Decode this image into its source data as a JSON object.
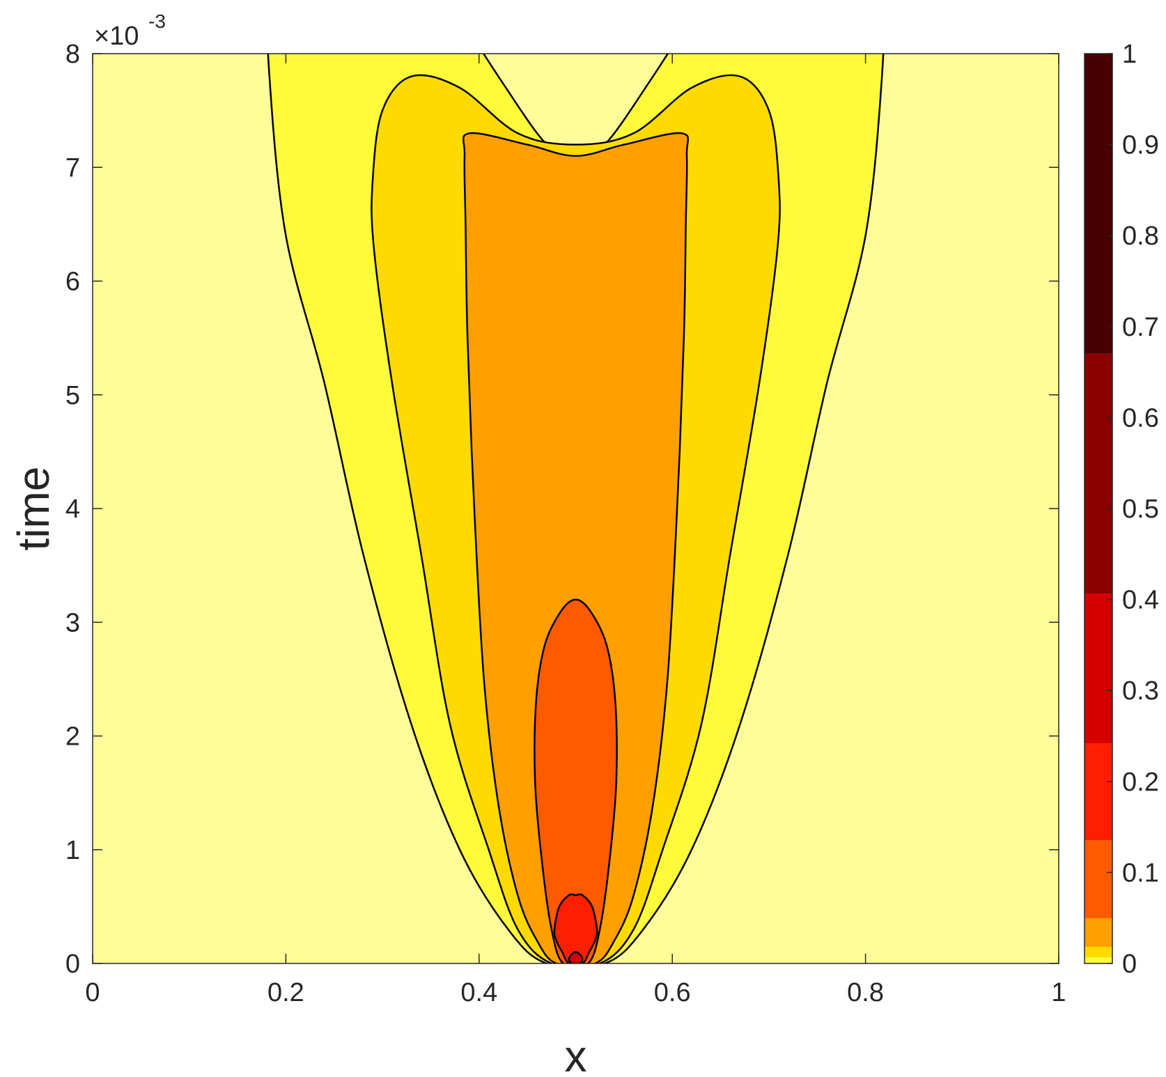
{
  "chart_data": {
    "type": "contourf",
    "title": "",
    "xlabel": "x",
    "ylabel": "time",
    "xlim": [
      0,
      1
    ],
    "ylim": [
      0,
      0.008
    ],
    "y_exponent_label": "×10",
    "y_exponent_power": "-3",
    "x_ticks": [
      0,
      0.2,
      0.4,
      0.6,
      0.8,
      1
    ],
    "x_tick_labels": [
      "0",
      "0.2",
      "0.4",
      "0.6",
      "0.8",
      "1"
    ],
    "y_ticks": [
      0,
      0.001,
      0.002,
      0.003,
      0.004,
      0.005,
      0.006,
      0.007,
      0.008
    ],
    "y_tick_labels": [
      "0",
      "1",
      "2",
      "3",
      "4",
      "5",
      "6",
      "7",
      "8"
    ],
    "background_color": "#FFFD99",
    "contour_regions": [
      {
        "level": "outer",
        "color": "#FFFB3A",
        "boundary": [
          [
            0.47,
            0
          ],
          [
            0.43,
            0.0003
          ],
          [
            0.38,
            0.001
          ],
          [
            0.33,
            0.0021
          ],
          [
            0.28,
            0.0036
          ],
          [
            0.24,
            0.0051
          ],
          [
            0.2,
            0.0064
          ],
          [
            0.183,
            0.0078
          ],
          [
            0.183,
            0.0085
          ],
          [
            0.2,
            0.0095
          ],
          [
            0.24,
            0.0099
          ],
          [
            0.3,
            0.0094
          ],
          [
            0.36,
            0.0086
          ],
          [
            0.42,
            0.0078
          ],
          [
            0.47,
            0.0072
          ],
          [
            0.5,
            0.0071
          ],
          [
            0.53,
            0.0072
          ],
          [
            0.58,
            0.0078
          ],
          [
            0.64,
            0.0086
          ],
          [
            0.7,
            0.0094
          ],
          [
            0.76,
            0.0099
          ],
          [
            0.8,
            0.0095
          ],
          [
            0.817,
            0.0085
          ],
          [
            0.817,
            0.0078
          ],
          [
            0.8,
            0.0064
          ],
          [
            0.76,
            0.0051
          ],
          [
            0.72,
            0.0036
          ],
          [
            0.67,
            0.0021
          ],
          [
            0.62,
            0.001
          ],
          [
            0.57,
            0.0003
          ],
          [
            0.53,
            0
          ]
        ]
      },
      {
        "level": "second",
        "color": "#FFDA00",
        "boundary": [
          [
            0.475,
            0
          ],
          [
            0.44,
            0.0003
          ],
          [
            0.41,
            0.001
          ],
          [
            0.37,
            0.0021
          ],
          [
            0.34,
            0.0036
          ],
          [
            0.31,
            0.0051
          ],
          [
            0.291,
            0.0063
          ],
          [
            0.29,
            0.0069
          ],
          [
            0.3,
            0.0075
          ],
          [
            0.33,
            0.0078
          ],
          [
            0.38,
            0.0077
          ],
          [
            0.44,
            0.0073
          ],
          [
            0.5,
            0.0072
          ],
          [
            0.56,
            0.0073
          ],
          [
            0.62,
            0.0077
          ],
          [
            0.67,
            0.0078
          ],
          [
            0.7,
            0.0075
          ],
          [
            0.71,
            0.0069
          ],
          [
            0.709,
            0.0063
          ],
          [
            0.69,
            0.0051
          ],
          [
            0.66,
            0.0036
          ],
          [
            0.63,
            0.0021
          ],
          [
            0.59,
            0.001
          ],
          [
            0.56,
            0.0003
          ],
          [
            0.525,
            0
          ]
        ]
      },
      {
        "level": "third",
        "color": "#FF9F00",
        "boundary": [
          [
            0.48,
            0
          ],
          [
            0.46,
            0.0002
          ],
          [
            0.44,
            0.0006
          ],
          [
            0.42,
            0.0014
          ],
          [
            0.405,
            0.0025
          ],
          [
            0.395,
            0.004
          ],
          [
            0.388,
            0.0055
          ],
          [
            0.386,
            0.0065
          ],
          [
            0.385,
            0.0071
          ],
          [
            0.39,
            0.0073
          ],
          [
            0.45,
            0.0072
          ],
          [
            0.5,
            0.0071
          ],
          [
            0.55,
            0.0072
          ],
          [
            0.61,
            0.0073
          ],
          [
            0.615,
            0.0071
          ],
          [
            0.614,
            0.0065
          ],
          [
            0.612,
            0.0055
          ],
          [
            0.605,
            0.004
          ],
          [
            0.595,
            0.0025
          ],
          [
            0.58,
            0.0014
          ],
          [
            0.56,
            0.0006
          ],
          [
            0.54,
            0.0002
          ],
          [
            0.52,
            0
          ]
        ]
      },
      {
        "level": "fourth",
        "color": "#FF5A00",
        "boundary": [
          [
            0.487,
            0
          ],
          [
            0.475,
            0.0003
          ],
          [
            0.465,
            0.0009
          ],
          [
            0.458,
            0.0016
          ],
          [
            0.459,
            0.0023
          ],
          [
            0.468,
            0.0028
          ],
          [
            0.485,
            0.0031
          ],
          [
            0.5,
            0.0032
          ],
          [
            0.515,
            0.0031
          ],
          [
            0.532,
            0.0028
          ],
          [
            0.541,
            0.0023
          ],
          [
            0.542,
            0.0016
          ],
          [
            0.535,
            0.0009
          ],
          [
            0.525,
            0.0003
          ],
          [
            0.513,
            0
          ]
        ]
      },
      {
        "level": "fifth",
        "color": "#FF1E00",
        "boundary": [
          [
            0.493,
            0
          ],
          [
            0.486,
            0.0001
          ],
          [
            0.48,
            0.0002
          ],
          [
            0.478,
            0.0003
          ],
          [
            0.483,
            0.0005
          ],
          [
            0.493,
            0.0006
          ],
          [
            0.5,
            0.0006
          ],
          [
            0.507,
            0.0006
          ],
          [
            0.517,
            0.0005
          ],
          [
            0.522,
            0.0003
          ],
          [
            0.52,
            0.0002
          ],
          [
            0.514,
            0.0001
          ],
          [
            0.507,
            0
          ]
        ]
      },
      {
        "level": "sixth",
        "color": "#D40000",
        "boundary": [
          [
            0.496,
            0
          ],
          [
            0.493,
            4e-05
          ],
          [
            0.497,
            9e-05
          ],
          [
            0.5,
            0.0001
          ],
          [
            0.503,
            9e-05
          ],
          [
            0.507,
            4e-05
          ],
          [
            0.504,
            0
          ]
        ]
      }
    ],
    "colorbar": {
      "ticks": [
        0,
        0.1,
        0.2,
        0.3,
        0.4,
        0.5,
        0.6,
        0.7,
        0.8,
        0.9,
        1
      ],
      "tick_labels": [
        "0",
        "0.1",
        "0.2",
        "0.3",
        "0.4",
        "0.5",
        "0.6",
        "0.7",
        "0.8",
        "0.9",
        "1"
      ],
      "bands": [
        {
          "from": 0,
          "to": 0.0067,
          "color": "#FFFB3A"
        },
        {
          "from": 0.0067,
          "to": 0.0183,
          "color": "#FFDA00"
        },
        {
          "from": 0.0183,
          "to": 0.0498,
          "color": "#FF9F00"
        },
        {
          "from": 0.0498,
          "to": 0.1353,
          "color": "#FF5A00"
        },
        {
          "from": 0.1353,
          "to": 0.2419,
          "color": "#FF1E00"
        },
        {
          "from": 0.2419,
          "to": 0.4066,
          "color": "#D40000"
        },
        {
          "from": 0.4066,
          "to": 0.6703,
          "color": "#8C0000"
        },
        {
          "from": 0.6703,
          "to": 1.0,
          "color": "#480000"
        }
      ]
    }
  }
}
